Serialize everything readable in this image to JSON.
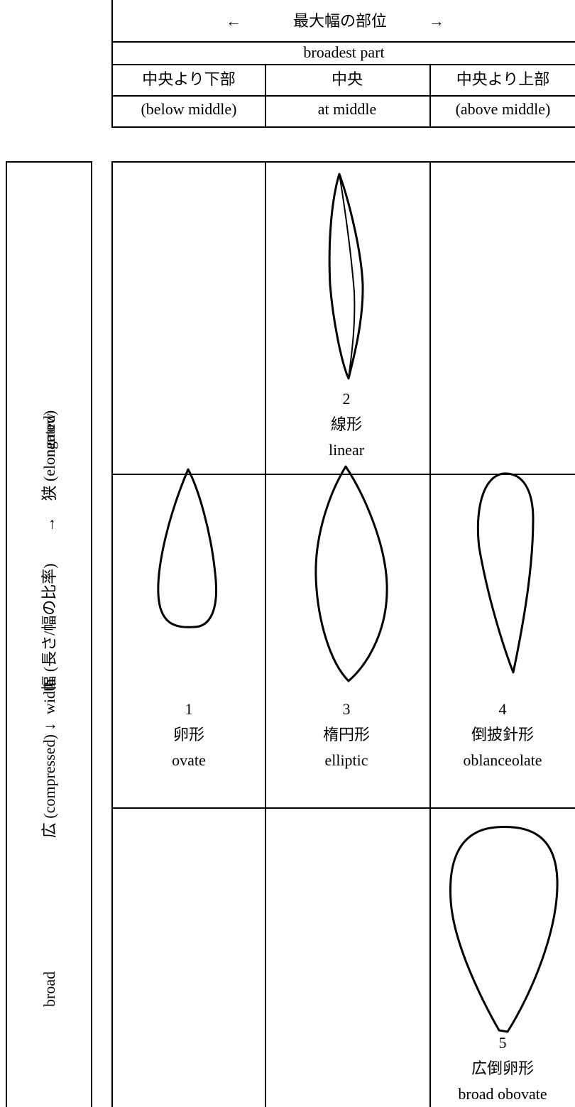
{
  "header": {
    "arrow_left": "←",
    "title_jp": "最大幅の部位",
    "arrow_right": "→",
    "title_en": "broadest part",
    "columns": [
      {
        "jp": "中央より下部",
        "en": "(below middle)"
      },
      {
        "jp": "中央",
        "en": "at middle"
      },
      {
        "jp": "中央より上部",
        "en": "(above middle)"
      }
    ]
  },
  "side": {
    "line1": "広 (compressed) ↓　　幅 (長さ/幅の比率)　　→　狭 (elongated)",
    "broad": "broad",
    "width": "width",
    "narrow": "narrow"
  },
  "shapes": [
    {
      "number": "2",
      "jp": "線形",
      "en": "linear",
      "icon": "linear-leaf-icon"
    },
    {
      "number": "1",
      "jp": "卵形",
      "en": "ovate",
      "icon": "ovate-leaf-icon"
    },
    {
      "number": "3",
      "jp": "楕円形",
      "en": "elliptic",
      "icon": "elliptic-leaf-icon"
    },
    {
      "number": "4",
      "jp": "倒披針形",
      "en": "oblanceolate",
      "icon": "oblanceolate-leaf-icon"
    },
    {
      "number": "5",
      "jp": "広倒卵形",
      "en": "broad obovate",
      "icon": "broad-obovate-leaf-icon"
    }
  ]
}
